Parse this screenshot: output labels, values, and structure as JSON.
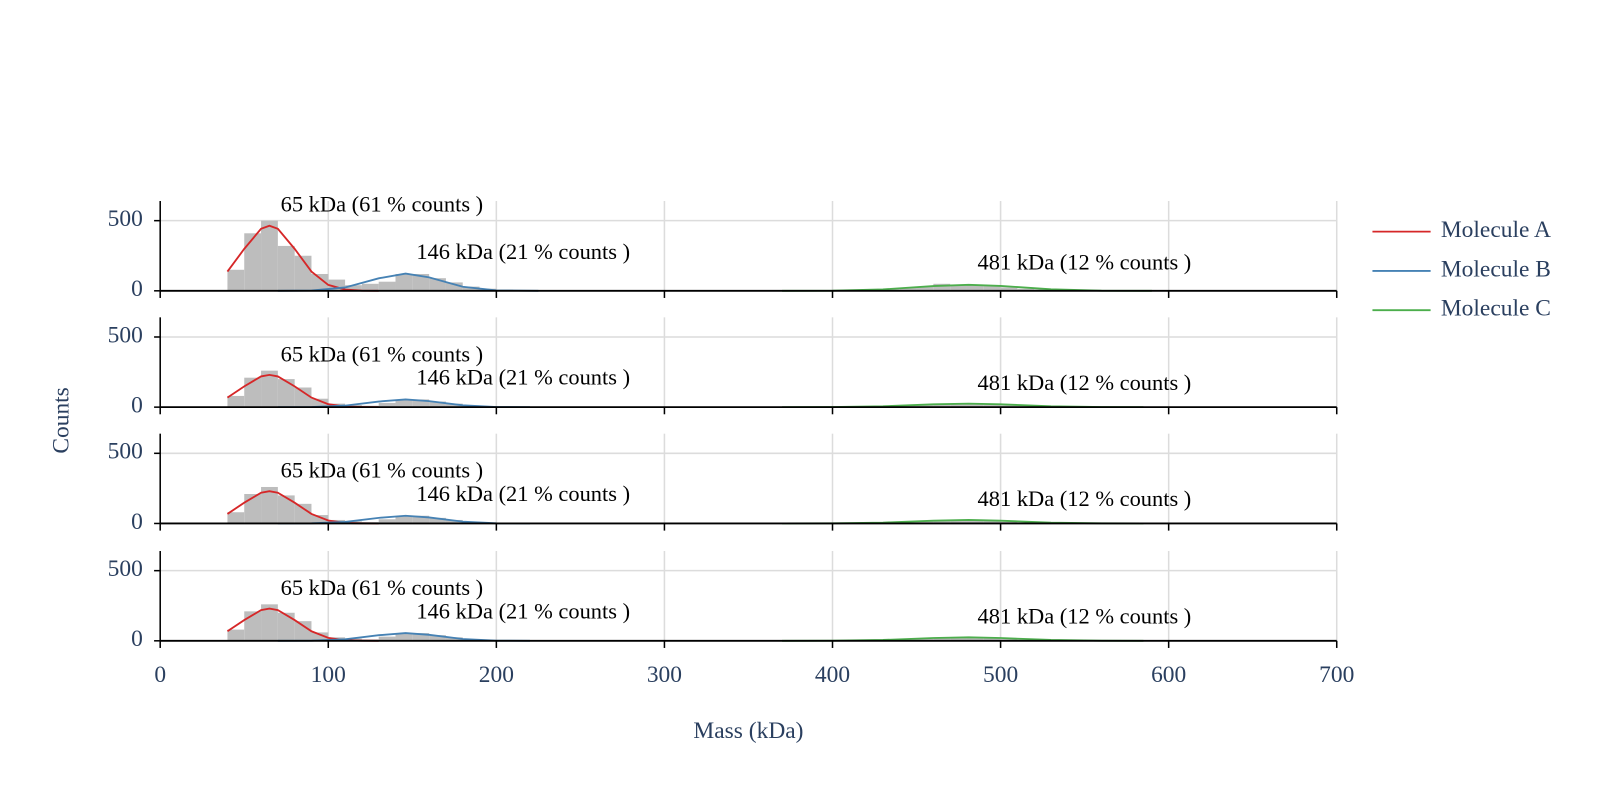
{
  "chart_data": [
    {
      "type": "histogram",
      "bins": [
        40,
        50,
        60,
        70,
        80,
        90,
        100,
        110,
        120,
        130,
        140,
        150,
        160,
        170,
        180,
        190,
        200,
        210,
        220,
        230,
        240,
        250,
        260,
        270,
        280,
        290,
        300,
        310,
        320,
        330,
        340,
        350,
        360,
        370,
        380,
        390,
        400,
        410,
        420,
        430,
        440,
        450,
        460,
        470,
        480,
        490,
        500,
        510,
        520,
        530,
        540,
        550,
        560,
        570,
        580,
        590
      ],
      "counts": [
        150,
        410,
        500,
        320,
        250,
        120,
        80,
        40,
        50,
        65,
        120,
        120,
        90,
        60,
        30,
        15,
        8,
        5,
        2,
        0,
        0,
        0,
        0,
        0,
        0,
        0,
        0,
        0,
        0,
        0,
        0,
        0,
        0,
        0,
        1,
        2,
        3,
        5,
        8,
        12,
        20,
        30,
        50,
        40,
        45,
        35,
        25,
        15,
        10,
        6,
        4,
        2,
        1,
        1,
        0
      ],
      "bar_color": "#bdbdbd",
      "series": [
        {
          "name": "Molecule A",
          "color": "#d62728",
          "x": [
            40,
            50,
            60,
            65,
            70,
            80,
            90,
            100,
            110,
            120,
            130
          ],
          "values": [
            137,
            299,
            442,
            464,
            442,
            299,
            137,
            42,
            9,
            1,
            0
          ]
        },
        {
          "name": "Molecule B",
          "color": "#4682b4",
          "x": [
            70,
            90,
            110,
            130,
            146,
            160,
            180,
            200,
            225
          ],
          "values": [
            0,
            2,
            24,
            89,
            123,
            96,
            29,
            3,
            0
          ]
        },
        {
          "name": "Molecule C",
          "color": "#4cae4c",
          "x": [
            370,
            400,
            430,
            460,
            481,
            500,
            530,
            560,
            590
          ],
          "values": [
            0,
            1,
            10,
            34,
            43,
            35,
            11,
            1,
            0
          ]
        }
      ],
      "annotations": [
        "65 kDa (61 % counts )",
        "146 kDa (21 % counts )",
        "481 kDa (12 % counts )"
      ],
      "ylabel": "Counts",
      "legend": "right",
      "xlim": [
        0,
        700
      ],
      "xticks": [
        0,
        100,
        200,
        300,
        400,
        500,
        600,
        700
      ],
      "ylim": [
        0,
        640
      ],
      "yticks": [
        0,
        500
      ],
      "grid": true
    },
    {
      "type": "histogram",
      "bins": [
        40,
        50,
        60,
        70,
        80,
        90,
        100,
        110,
        120,
        130,
        140,
        150,
        160,
        170,
        180,
        190,
        200,
        210,
        220,
        230,
        240,
        250,
        260,
        270,
        280,
        290,
        300,
        310,
        320,
        330,
        340,
        350,
        360,
        370,
        380,
        390,
        400,
        410,
        420,
        430,
        440,
        450,
        460,
        470,
        480,
        490,
        500,
        510,
        520,
        530,
        540,
        550,
        560,
        570,
        580,
        590
      ],
      "counts": [
        80,
        210,
        260,
        200,
        140,
        60,
        25,
        15,
        10,
        30,
        50,
        55,
        40,
        25,
        12,
        6,
        3,
        2,
        1,
        0,
        0,
        0,
        0,
        0,
        0,
        0,
        0,
        0,
        0,
        0,
        0,
        0,
        0,
        0,
        0,
        1,
        1,
        2,
        4,
        6,
        10,
        15,
        22,
        20,
        24,
        18,
        12,
        8,
        5,
        3,
        2,
        1,
        1,
        0,
        0
      ],
      "bar_color": "#bdbdbd",
      "series": [
        {
          "color": "#d62728",
          "x": [
            40,
            50,
            60,
            65,
            70,
            80,
            90,
            100,
            110,
            120,
            130
          ],
          "values": [
            68,
            148,
            219,
            230,
            219,
            148,
            68,
            21,
            4,
            1,
            0
          ]
        },
        {
          "color": "#4682b4",
          "x": [
            70,
            90,
            110,
            130,
            146,
            160,
            180,
            200,
            220
          ],
          "values": [
            0,
            1,
            11,
            40,
            55,
            43,
            13,
            1,
            0
          ]
        },
        {
          "color": "#4cae4c",
          "x": [
            370,
            400,
            430,
            460,
            481,
            500,
            530,
            560,
            585
          ],
          "values": [
            0,
            1,
            6,
            20,
            25,
            20,
            6,
            1,
            0
          ]
        }
      ],
      "annotations": [
        "65 kDa (61 % counts )",
        "146 kDa (21 % counts )",
        "481 kDa (12 % counts )"
      ],
      "xlim": [
        0,
        700
      ],
      "xticks": [
        0,
        100,
        200,
        300,
        400,
        500,
        600,
        700
      ],
      "ylim": [
        0,
        640
      ],
      "yticks": [
        0,
        500
      ],
      "grid": true
    },
    {
      "type": "histogram",
      "bins": [
        40,
        50,
        60,
        70,
        80,
        90,
        100,
        110,
        120,
        130,
        140,
        150,
        160,
        170,
        180,
        190,
        200,
        210,
        220,
        230,
        240,
        250,
        260,
        270,
        280,
        290,
        300,
        310,
        320,
        330,
        340,
        350,
        360,
        370,
        380,
        390,
        400,
        410,
        420,
        430,
        440,
        450,
        460,
        470,
        480,
        490,
        500,
        510,
        520,
        530,
        540,
        550,
        560,
        570,
        580,
        590
      ],
      "counts": [
        80,
        210,
        260,
        200,
        140,
        60,
        25,
        15,
        10,
        30,
        50,
        55,
        40,
        25,
        12,
        6,
        3,
        2,
        1,
        0,
        0,
        0,
        0,
        0,
        0,
        0,
        0,
        0,
        0,
        0,
        0,
        0,
        0,
        0,
        0,
        1,
        1,
        2,
        4,
        6,
        10,
        15,
        22,
        20,
        24,
        18,
        12,
        8,
        5,
        3,
        2,
        1,
        1,
        0,
        0
      ],
      "bar_color": "#bdbdbd",
      "series": [
        {
          "color": "#d62728",
          "x": [
            40,
            50,
            60,
            65,
            70,
            80,
            90,
            100,
            110,
            120,
            130
          ],
          "values": [
            68,
            148,
            219,
            230,
            219,
            148,
            68,
            21,
            4,
            1,
            0
          ]
        },
        {
          "color": "#4682b4",
          "x": [
            70,
            90,
            110,
            130,
            146,
            160,
            180,
            200,
            220
          ],
          "values": [
            0,
            1,
            11,
            40,
            55,
            43,
            13,
            1,
            0
          ]
        },
        {
          "color": "#4cae4c",
          "x": [
            370,
            400,
            430,
            460,
            481,
            500,
            530,
            560,
            585
          ],
          "values": [
            0,
            1,
            6,
            20,
            25,
            20,
            6,
            1,
            0
          ]
        }
      ],
      "annotations": [
        "65 kDa (61 % counts )",
        "146 kDa (21 % counts )",
        "481 kDa (12 % counts )"
      ],
      "xlim": [
        0,
        700
      ],
      "xticks": [
        0,
        100,
        200,
        300,
        400,
        500,
        600,
        700
      ],
      "ylim": [
        0,
        640
      ],
      "yticks": [
        0,
        500
      ],
      "grid": true
    },
    {
      "type": "histogram",
      "bins": [
        40,
        50,
        60,
        70,
        80,
        90,
        100,
        110,
        120,
        130,
        140,
        150,
        160,
        170,
        180,
        190,
        200,
        210,
        220,
        230,
        240,
        250,
        260,
        270,
        280,
        290,
        300,
        310,
        320,
        330,
        340,
        350,
        360,
        370,
        380,
        390,
        400,
        410,
        420,
        430,
        440,
        450,
        460,
        470,
        480,
        490,
        500,
        510,
        520,
        530,
        540,
        550,
        560,
        570,
        580,
        590
      ],
      "counts": [
        80,
        210,
        260,
        200,
        140,
        60,
        25,
        15,
        10,
        30,
        50,
        55,
        40,
        25,
        12,
        6,
        3,
        2,
        1,
        0,
        0,
        0,
        0,
        0,
        0,
        0,
        0,
        0,
        0,
        0,
        0,
        0,
        0,
        0,
        0,
        1,
        1,
        2,
        4,
        6,
        10,
        15,
        22,
        20,
        24,
        18,
        12,
        8,
        5,
        3,
        2,
        1,
        1,
        0,
        0
      ],
      "bar_color": "#bdbdbd",
      "series": [
        {
          "color": "#d62728",
          "x": [
            40,
            50,
            60,
            65,
            70,
            80,
            90,
            100,
            110,
            120,
            130
          ],
          "values": [
            68,
            148,
            219,
            230,
            219,
            148,
            68,
            21,
            4,
            1,
            0
          ]
        },
        {
          "color": "#4682b4",
          "x": [
            70,
            90,
            110,
            130,
            146,
            160,
            180,
            200,
            220
          ],
          "values": [
            0,
            1,
            11,
            40,
            55,
            43,
            13,
            1,
            0
          ]
        },
        {
          "color": "#4cae4c",
          "x": [
            370,
            400,
            430,
            460,
            481,
            500,
            530,
            560,
            585
          ],
          "values": [
            0,
            1,
            6,
            20,
            25,
            20,
            6,
            1,
            0
          ]
        }
      ],
      "annotations": [
        "65 kDa (61 % counts )",
        "146 kDa (21 % counts )",
        "481 kDa (12 % counts )"
      ],
      "xlabel": "Mass (kDa)",
      "xlim": [
        0,
        700
      ],
      "xticks": [
        0,
        100,
        200,
        300,
        400,
        500,
        600,
        700
      ],
      "ylim": [
        0,
        640
      ],
      "yticks": [
        0,
        500
      ],
      "grid": true
    }
  ]
}
